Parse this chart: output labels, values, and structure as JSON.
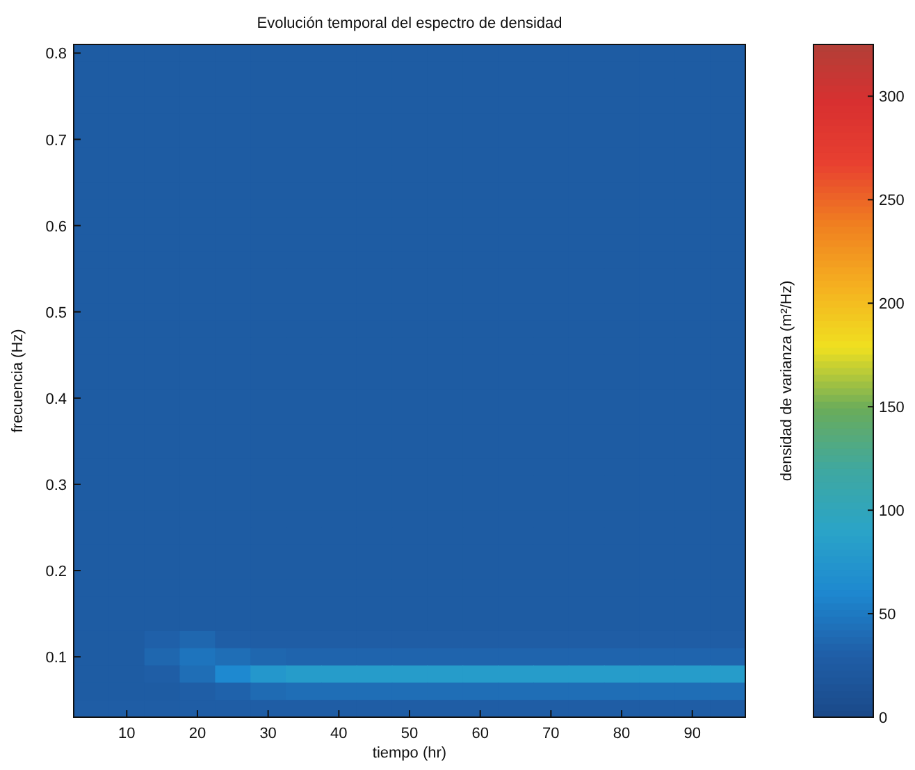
{
  "chart_data": {
    "type": "heatmap",
    "title": "Evolución temporal del espectro de densidad",
    "xlabel": "tiempo (hr)",
    "ylabel": "frecuencia (Hz)",
    "clabel": "densidad de varianza (m²/Hz)",
    "categories": [
      null,
      "10",
      null,
      "20",
      null,
      "30",
      null,
      "40",
      null,
      "50",
      null,
      "60",
      null,
      "70",
      null,
      "80",
      null,
      "90",
      null
    ],
    "y_categories": [
      "0.8",
      null,
      null,
      null,
      null,
      "0.7",
      null,
      null,
      null,
      null,
      "0.6",
      null,
      null,
      null,
      null,
      "0.5",
      null,
      null,
      null,
      null,
      "0.4",
      null,
      null,
      null,
      null,
      "0.3",
      null,
      null,
      null,
      null,
      "0.2",
      null,
      null,
      null,
      null,
      "0.1",
      null,
      null,
      null
    ],
    "clim": [
      0,
      325
    ],
    "cticks": [
      0,
      50,
      100,
      150,
      200,
      250,
      300
    ],
    "cells": [
      [
        25,
        25,
        25,
        25,
        25,
        25,
        25,
        25,
        25,
        25,
        25,
        25,
        25,
        25,
        25,
        25,
        25,
        25,
        25
      ],
      [
        25,
        25,
        25,
        25,
        25,
        25,
        25,
        25,
        25,
        25,
        25,
        25,
        25,
        25,
        25,
        25,
        25,
        25,
        25
      ],
      [
        25,
        25,
        25,
        25,
        25,
        25,
        25,
        25,
        25,
        25,
        25,
        25,
        25,
        25,
        25,
        25,
        25,
        25,
        25
      ],
      [
        25,
        25,
        25,
        25,
        25,
        25,
        25,
        25,
        25,
        25,
        25,
        25,
        25,
        25,
        25,
        25,
        25,
        25,
        25
      ],
      [
        25,
        25,
        25,
        25,
        25,
        25,
        25,
        25,
        25,
        25,
        25,
        25,
        25,
        25,
        25,
        25,
        25,
        25,
        25
      ],
      [
        25,
        25,
        25,
        25,
        25,
        25,
        25,
        25,
        25,
        25,
        25,
        25,
        25,
        25,
        25,
        25,
        25,
        25,
        25
      ],
      [
        25,
        25,
        25,
        25,
        25,
        25,
        25,
        25,
        25,
        25,
        25,
        25,
        25,
        25,
        25,
        25,
        25,
        25,
        25
      ],
      [
        25,
        25,
        25,
        25,
        25,
        25,
        25,
        25,
        25,
        25,
        25,
        25,
        25,
        25,
        25,
        25,
        25,
        25,
        25
      ],
      [
        25,
        25,
        25,
        25,
        25,
        25,
        25,
        25,
        25,
        25,
        25,
        25,
        25,
        25,
        25,
        25,
        25,
        25,
        25
      ],
      [
        25,
        25,
        25,
        25,
        25,
        25,
        25,
        25,
        25,
        25,
        25,
        25,
        25,
        25,
        25,
        25,
        25,
        25,
        25
      ],
      [
        25,
        25,
        25,
        25,
        25,
        25,
        25,
        25,
        25,
        25,
        25,
        25,
        25,
        25,
        25,
        25,
        25,
        25,
        25
      ],
      [
        25,
        25,
        25,
        25,
        25,
        25,
        25,
        25,
        25,
        25,
        25,
        25,
        25,
        25,
        25,
        25,
        25,
        25,
        25
      ],
      [
        25,
        25,
        25,
        25,
        25,
        25,
        25,
        25,
        25,
        25,
        25,
        25,
        25,
        25,
        25,
        25,
        25,
        25,
        25
      ],
      [
        25,
        25,
        25,
        25,
        25,
        25,
        25,
        25,
        25,
        25,
        25,
        25,
        25,
        25,
        25,
        25,
        25,
        25,
        25
      ],
      [
        25,
        25,
        25,
        25,
        25,
        25,
        25,
        25,
        25,
        25,
        25,
        25,
        25,
        25,
        25,
        25,
        25,
        25,
        25
      ],
      [
        25,
        25,
        25,
        25,
        25,
        25,
        25,
        25,
        25,
        25,
        25,
        25,
        25,
        25,
        25,
        25,
        25,
        25,
        25
      ],
      [
        25,
        25,
        25,
        25,
        25,
        25,
        25,
        25,
        25,
        25,
        25,
        25,
        25,
        25,
        25,
        25,
        25,
        25,
        25
      ],
      [
        25,
        25,
        25,
        25,
        25,
        25,
        25,
        25,
        25,
        25,
        25,
        25,
        25,
        25,
        25,
        25,
        25,
        25,
        25
      ],
      [
        25,
        25,
        25,
        25,
        25,
        25,
        25,
        25,
        25,
        25,
        25,
        25,
        25,
        25,
        25,
        25,
        25,
        25,
        25
      ],
      [
        25,
        25,
        25,
        25,
        25,
        25,
        25,
        25,
        25,
        25,
        25,
        25,
        25,
        25,
        25,
        25,
        25,
        25,
        25
      ],
      [
        25,
        25,
        25,
        25,
        25,
        25,
        25,
        25,
        25,
        25,
        25,
        25,
        25,
        25,
        25,
        25,
        25,
        25,
        25
      ],
      [
        25,
        25,
        25,
        25,
        25,
        25,
        25,
        25,
        25,
        25,
        25,
        25,
        25,
        25,
        25,
        25,
        25,
        25,
        25
      ],
      [
        25,
        25,
        25,
        25,
        25,
        25,
        25,
        25,
        25,
        25,
        25,
        25,
        25,
        25,
        25,
        25,
        25,
        25,
        25
      ],
      [
        25,
        25,
        25,
        25,
        25,
        25,
        25,
        25,
        25,
        25,
        25,
        25,
        25,
        25,
        25,
        25,
        25,
        25,
        25
      ],
      [
        25,
        25,
        25,
        25,
        25,
        25,
        25,
        25,
        25,
        25,
        25,
        25,
        25,
        25,
        25,
        25,
        25,
        25,
        25
      ],
      [
        25,
        25,
        25,
        25,
        25,
        25,
        25,
        25,
        25,
        25,
        25,
        25,
        25,
        25,
        25,
        25,
        25,
        25,
        25
      ],
      [
        25,
        25,
        25,
        25,
        25,
        25,
        25,
        25,
        25,
        25,
        25,
        25,
        25,
        25,
        25,
        25,
        25,
        25,
        25
      ],
      [
        25,
        25,
        25,
        25,
        25,
        25,
        25,
        25,
        25,
        25,
        25,
        25,
        25,
        25,
        25,
        25,
        25,
        25,
        25
      ],
      [
        25,
        25,
        25,
        25,
        25,
        25,
        25,
        25,
        25,
        25,
        25,
        25,
        25,
        25,
        25,
        25,
        25,
        25,
        25
      ],
      [
        25,
        25,
        25,
        25,
        25,
        25,
        25,
        25,
        25,
        25,
        25,
        25,
        25,
        25,
        25,
        25,
        25,
        25,
        25
      ],
      [
        25,
        25,
        25,
        25,
        25,
        25,
        25,
        25,
        25,
        25,
        25,
        25,
        25,
        25,
        25,
        25,
        25,
        25,
        25
      ],
      [
        25,
        25,
        25,
        25,
        25,
        25,
        25,
        25,
        25,
        25,
        25,
        25,
        25,
        25,
        25,
        25,
        25,
        25,
        25
      ],
      [
        25,
        25,
        25,
        25,
        25,
        25,
        25,
        25,
        25,
        25,
        25,
        25,
        25,
        25,
        25,
        25,
        25,
        25,
        25
      ],
      [
        25,
        25,
        25,
        25,
        25,
        25,
        25,
        25,
        25,
        25,
        25,
        25,
        25,
        25,
        25,
        25,
        25,
        25,
        25
      ],
      [
        25,
        25,
        30,
        35,
        28,
        27,
        27,
        27,
        27,
        27,
        27,
        27,
        27,
        27,
        27,
        27,
        27,
        27,
        27
      ],
      [
        25,
        25,
        35,
        45,
        40,
        35,
        33,
        33,
        33,
        33,
        33,
        33,
        33,
        33,
        33,
        33,
        33,
        33,
        33
      ],
      [
        25,
        25,
        28,
        40,
        60,
        75,
        80,
        80,
        80,
        80,
        80,
        80,
        80,
        80,
        80,
        80,
        80,
        80,
        80
      ],
      [
        25,
        25,
        25,
        28,
        32,
        38,
        40,
        40,
        40,
        40,
        40,
        40,
        40,
        40,
        40,
        40,
        40,
        40,
        40
      ],
      [
        27,
        27,
        27,
        27,
        27,
        27,
        27,
        27,
        27,
        27,
        27,
        27,
        27,
        27,
        27,
        27,
        27,
        27,
        27
      ]
    ]
  }
}
